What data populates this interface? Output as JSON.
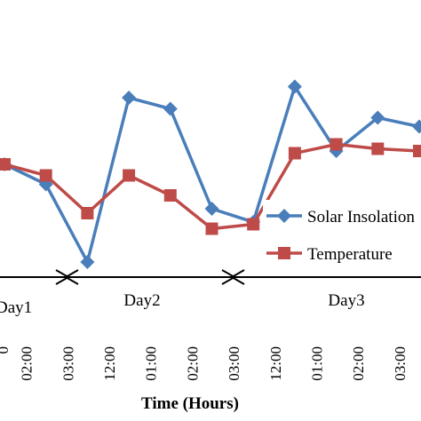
{
  "chart_data": {
    "type": "line",
    "x_label": "Time  (Hours)",
    "categories": [
      "0",
      "02:00",
      "03:00",
      "12:00",
      "01:00",
      "02:00",
      "03:00",
      "12:00",
      "01:00",
      "02:00",
      "03:00"
    ],
    "series": [
      {
        "name": "Solar Insolation",
        "color": "#4a7ebb",
        "marker": "diamond",
        "values": [
          46,
          37,
          2,
          76,
          71,
          26,
          20,
          81,
          52,
          67,
          63
        ]
      },
      {
        "name": "Temperature",
        "color": "#be4b48",
        "marker": "square",
        "values": [
          46,
          41,
          24,
          41,
          32,
          17,
          19,
          51,
          55,
          53,
          52
        ]
      }
    ],
    "ylim": [
      0,
      100
    ],
    "day_labels": [
      "Day1",
      "Day2",
      "Day3"
    ]
  }
}
